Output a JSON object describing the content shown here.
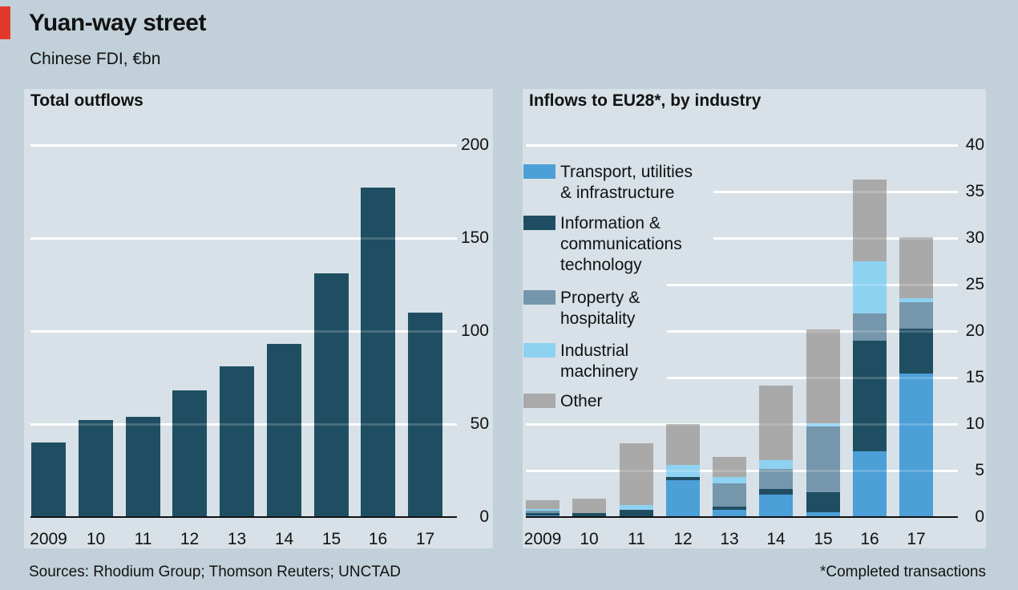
{
  "header": {
    "title": "Yuan-way street",
    "subtitle": "Chinese FDI, €bn"
  },
  "footer": {
    "sources": "Sources: Rhodium Group; Thomson Reuters; UNCTAD",
    "footnote": "*Completed transactions"
  },
  "colors": {
    "accent_red": "#e3392d",
    "page_bg": "#c2d1d9",
    "panel_bg": "#d7e1e7",
    "dark_teal": "#1f4e62",
    "transport_blue": "#4d9fd7",
    "property_slate": "#7596ab",
    "machinery_cyan": "#8ed2f2",
    "other_gray": "#a9a9a9",
    "text": "#121212",
    "gridline": "#ffffff"
  },
  "chart_data": [
    {
      "type": "bar",
      "title": "Total outflows",
      "categories": [
        "2009",
        "10",
        "11",
        "12",
        "13",
        "14",
        "15",
        "16",
        "17"
      ],
      "values": [
        40,
        52,
        54,
        68,
        81,
        93,
        131,
        177,
        110
      ],
      "xlabel": "",
      "ylabel": "",
      "ylim": [
        0,
        200
      ],
      "yticks": [
        0,
        50,
        100,
        150,
        200
      ],
      "grid": true,
      "legend_position": "none",
      "bar_color_key": "dark_teal"
    },
    {
      "type": "bar",
      "stacked": true,
      "title": "Inflows to EU28*, by industry",
      "categories": [
        "2009",
        "10",
        "11",
        "12",
        "13",
        "14",
        "15",
        "16",
        "17"
      ],
      "series": [
        {
          "slug": "transport",
          "name": "Transport, utilities\n& infrastructure",
          "color_key": "transport_blue",
          "values": [
            0.15,
            0.1,
            0.1,
            4.0,
            0.8,
            2.4,
            0.5,
            7.1,
            15.4
          ]
        },
        {
          "slug": "ict",
          "name": "Information &\ncommunications\ntechnology",
          "color_key": "dark_teal",
          "values": [
            0.3,
            0.3,
            0.65,
            0.3,
            0.3,
            0.6,
            2.2,
            11.9,
            4.9
          ]
        },
        {
          "slug": "property",
          "name": "Property &\nhospitality",
          "color_key": "property_slate",
          "values": [
            0.25,
            0.0,
            0.0,
            0.0,
            2.5,
            2.2,
            7.0,
            2.9,
            2.8
          ]
        },
        {
          "slug": "machinery",
          "name": "Industrial\nmachinery",
          "color_key": "machinery_cyan",
          "values": [
            0.2,
            0.0,
            0.55,
            1.3,
            0.7,
            0.9,
            0.35,
            5.6,
            0.45
          ]
        },
        {
          "slug": "other",
          "name": "Other",
          "color_key": "other_gray",
          "values": [
            0.95,
            1.6,
            6.6,
            4.4,
            2.2,
            8.0,
            10.1,
            8.8,
            6.5
          ]
        }
      ],
      "xlabel": "",
      "ylabel": "",
      "ylim": [
        0,
        40
      ],
      "yticks": [
        0,
        5,
        10,
        15,
        20,
        25,
        30,
        35,
        40
      ],
      "grid": true,
      "legend_position": "top-left"
    }
  ]
}
